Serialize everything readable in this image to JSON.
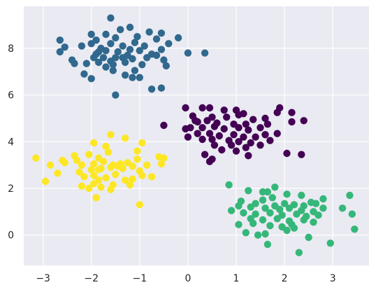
{
  "chart_data": {
    "type": "scatter",
    "title": "",
    "xlabel": "",
    "ylabel": "",
    "xlim": [
      -3.4,
      3.75
    ],
    "ylim": [
      -1.3,
      9.8
    ],
    "x_ticks": [
      -3,
      -2,
      -1,
      0,
      1,
      2,
      3
    ],
    "y_ticks": [
      0,
      2,
      4,
      6,
      8
    ],
    "grid": true,
    "background": "#EAEAF2",
    "grid_color": "#FFFFFF",
    "marker": "filled circle",
    "series": [
      {
        "color": "#31688E",
        "points": [
          [
            -1.6,
            9.3
          ],
          [
            -1.2,
            8.9
          ],
          [
            -0.8,
            8.7
          ],
          [
            -2.0,
            8.6
          ],
          [
            -1.7,
            8.6
          ],
          [
            -1.4,
            8.8
          ],
          [
            -0.55,
            8.65
          ],
          [
            -0.2,
            8.45
          ],
          [
            -2.65,
            8.35
          ],
          [
            -1.9,
            8.35
          ],
          [
            -1.5,
            8.45
          ],
          [
            -1.05,
            8.5
          ],
          [
            -0.65,
            8.4
          ],
          [
            -2.2,
            8.1
          ],
          [
            -2.0,
            8.2
          ],
          [
            -1.8,
            8.0
          ],
          [
            -1.6,
            8.2
          ],
          [
            -1.35,
            8.1
          ],
          [
            -1.1,
            8.25
          ],
          [
            -0.9,
            8.1
          ],
          [
            -0.4,
            8.2
          ],
          [
            -2.55,
            8.05
          ],
          [
            -2.65,
            7.85
          ],
          [
            -1.9,
            7.75
          ],
          [
            -1.7,
            7.9
          ],
          [
            -1.5,
            7.6
          ],
          [
            -1.25,
            7.7
          ],
          [
            -1.0,
            7.9
          ],
          [
            -0.75,
            7.75
          ],
          [
            -0.55,
            7.95
          ],
          [
            0.0,
            7.8
          ],
          [
            0.35,
            7.8
          ],
          [
            -2.4,
            7.5
          ],
          [
            -2.35,
            7.35
          ],
          [
            -2.1,
            7.35
          ],
          [
            -1.95,
            7.6
          ],
          [
            -1.85,
            7.4
          ],
          [
            -1.7,
            7.2
          ],
          [
            -1.55,
            7.3
          ],
          [
            -1.3,
            7.4
          ],
          [
            -1.15,
            7.55
          ],
          [
            -0.95,
            7.3
          ],
          [
            -0.65,
            7.7
          ],
          [
            -0.5,
            7.5
          ],
          [
            -0.45,
            7.25
          ],
          [
            -1.75,
            7.6
          ],
          [
            -1.6,
            7.45
          ],
          [
            -1.45,
            7.85
          ],
          [
            -1.2,
            7.95
          ],
          [
            -0.85,
            7.6
          ],
          [
            -2.15,
            6.9
          ],
          [
            -2.0,
            6.7
          ],
          [
            -1.3,
            6.85
          ],
          [
            -1.15,
            6.75
          ],
          [
            -1.0,
            6.75
          ],
          [
            -1.55,
            7.05
          ],
          [
            -1.1,
            7.05
          ],
          [
            -0.75,
            6.25
          ],
          [
            -0.55,
            6.3
          ],
          [
            -1.5,
            6.0
          ],
          [
            -1.85,
            7.85
          ],
          [
            -1.35,
            7.6
          ]
        ]
      },
      {
        "color": "#440154",
        "points": [
          [
            -0.05,
            5.45
          ],
          [
            0.3,
            5.45
          ],
          [
            0.45,
            5.45
          ],
          [
            0.75,
            5.35
          ],
          [
            1.0,
            5.35
          ],
          [
            1.15,
            5.2
          ],
          [
            1.6,
            5.0
          ],
          [
            1.9,
            5.45
          ],
          [
            2.15,
            5.25
          ],
          [
            0.1,
            5.1
          ],
          [
            0.5,
            5.05
          ],
          [
            0.8,
            5.05
          ],
          [
            1.05,
            5.15
          ],
          [
            1.35,
            4.95
          ],
          [
            1.85,
            5.25
          ],
          [
            2.4,
            4.9
          ],
          [
            0.2,
            4.85
          ],
          [
            0.4,
            4.9
          ],
          [
            0.6,
            4.8
          ],
          [
            0.95,
            4.75
          ],
          [
            1.2,
            4.75
          ],
          [
            1.5,
            4.6
          ],
          [
            2.15,
            4.85
          ],
          [
            -0.5,
            4.7
          ],
          [
            -0.05,
            4.55
          ],
          [
            0.05,
            4.6
          ],
          [
            0.3,
            4.6
          ],
          [
            0.55,
            4.65
          ],
          [
            0.75,
            4.55
          ],
          [
            1.05,
            4.6
          ],
          [
            1.25,
            4.5
          ],
          [
            0.2,
            4.35
          ],
          [
            0.45,
            4.35
          ],
          [
            0.65,
            4.25
          ],
          [
            0.95,
            4.3
          ],
          [
            1.15,
            4.2
          ],
          [
            1.4,
            4.2
          ],
          [
            1.6,
            4.3
          ],
          [
            1.85,
            4.35
          ],
          [
            0.0,
            4.2
          ],
          [
            0.3,
            4.1
          ],
          [
            0.5,
            4.1
          ],
          [
            0.85,
            4.05
          ],
          [
            1.05,
            4.0
          ],
          [
            1.3,
            3.95
          ],
          [
            1.7,
            4.05
          ],
          [
            0.55,
            3.85
          ],
          [
            0.9,
            3.85
          ],
          [
            1.2,
            3.75
          ],
          [
            1.5,
            3.85
          ],
          [
            0.7,
            3.65
          ],
          [
            1.0,
            3.6
          ],
          [
            0.35,
            3.45
          ],
          [
            1.25,
            3.4
          ],
          [
            2.05,
            3.5
          ],
          [
            2.35,
            3.45
          ],
          [
            0.45,
            3.15
          ],
          [
            0.5,
            3.25
          ],
          [
            0.15,
            4.9
          ],
          [
            1.65,
            4.75
          ]
        ]
      },
      {
        "color": "#FDE725",
        "points": [
          [
            -1.6,
            4.3
          ],
          [
            -1.3,
            4.15
          ],
          [
            -1.95,
            3.95
          ],
          [
            -1.7,
            3.8
          ],
          [
            -0.95,
            3.95
          ],
          [
            -3.15,
            3.3
          ],
          [
            -2.6,
            3.2
          ],
          [
            -2.35,
            3.4
          ],
          [
            -2.05,
            3.45
          ],
          [
            -1.85,
            3.3
          ],
          [
            -1.65,
            3.55
          ],
          [
            -1.05,
            3.6
          ],
          [
            -0.6,
            3.35
          ],
          [
            -0.5,
            3.3
          ],
          [
            -2.85,
            3.0
          ],
          [
            -2.55,
            3.1
          ],
          [
            -2.2,
            3.0
          ],
          [
            -1.95,
            3.05
          ],
          [
            -1.75,
            3.15
          ],
          [
            -1.55,
            3.0
          ],
          [
            -1.4,
            3.05
          ],
          [
            -1.25,
            3.1
          ],
          [
            -1.05,
            3.25
          ],
          [
            -0.85,
            3.0
          ],
          [
            -0.55,
            3.05
          ],
          [
            -2.25,
            2.7
          ],
          [
            -2.0,
            2.8
          ],
          [
            -1.8,
            2.85
          ],
          [
            -1.6,
            2.9
          ],
          [
            -1.35,
            2.85
          ],
          [
            -1.15,
            2.95
          ],
          [
            -1.0,
            2.75
          ],
          [
            -0.75,
            2.5
          ],
          [
            -2.7,
            2.65
          ],
          [
            -2.15,
            2.5
          ],
          [
            -1.95,
            2.55
          ],
          [
            -1.85,
            2.35
          ],
          [
            -1.7,
            2.45
          ],
          [
            -1.5,
            2.6
          ],
          [
            -1.3,
            2.35
          ],
          [
            -1.15,
            2.4
          ],
          [
            -0.95,
            2.55
          ],
          [
            -2.95,
            2.3
          ],
          [
            -2.2,
            2.1
          ],
          [
            -1.95,
            2.2
          ],
          [
            -1.8,
            2.05
          ],
          [
            -1.55,
            2.15
          ],
          [
            -1.2,
            2.15
          ],
          [
            -2.05,
            2.0
          ],
          [
            -1.6,
            1.95
          ],
          [
            -1.9,
            1.6
          ],
          [
            -1.0,
            1.3
          ],
          [
            -1.85,
            2.8
          ],
          [
            -2.3,
            3.2
          ],
          [
            -1.45,
            2.95
          ]
        ]
      },
      {
        "color": "#35B779",
        "points": [
          [
            0.85,
            2.15
          ],
          [
            1.25,
            1.9
          ],
          [
            1.55,
            1.85
          ],
          [
            1.65,
            1.85
          ],
          [
            1.8,
            2.05
          ],
          [
            2.05,
            1.75
          ],
          [
            2.35,
            1.7
          ],
          [
            2.55,
            1.4
          ],
          [
            2.8,
            1.55
          ],
          [
            3.35,
            1.7
          ],
          [
            1.1,
            1.45
          ],
          [
            1.4,
            1.35
          ],
          [
            1.55,
            1.5
          ],
          [
            1.75,
            1.6
          ],
          [
            2.0,
            1.35
          ],
          [
            2.2,
            1.3
          ],
          [
            2.4,
            1.25
          ],
          [
            2.65,
            1.35
          ],
          [
            1.05,
            1.25
          ],
          [
            1.3,
            1.2
          ],
          [
            1.6,
            1.15
          ],
          [
            1.9,
            1.1
          ],
          [
            2.1,
            1.15
          ],
          [
            2.35,
            1.05
          ],
          [
            2.6,
            1.0
          ],
          [
            2.8,
            1.15
          ],
          [
            0.9,
            1.05
          ],
          [
            1.15,
            0.95
          ],
          [
            1.4,
            0.9
          ],
          [
            1.7,
            0.95
          ],
          [
            1.95,
            0.85
          ],
          [
            2.25,
            0.9
          ],
          [
            2.45,
            0.8
          ],
          [
            2.7,
            0.85
          ],
          [
            1.3,
            0.7
          ],
          [
            1.55,
            0.65
          ],
          [
            1.85,
            0.7
          ],
          [
            2.1,
            0.6
          ],
          [
            2.4,
            0.65
          ],
          [
            2.6,
            0.55
          ],
          [
            1.05,
            0.45
          ],
          [
            1.35,
            0.5
          ],
          [
            1.7,
            0.4
          ],
          [
            1.95,
            0.35
          ],
          [
            2.2,
            0.3
          ],
          [
            1.2,
            0.1
          ],
          [
            1.45,
            0.0
          ],
          [
            1.6,
            0.05
          ],
          [
            2.05,
            0.2
          ],
          [
            2.5,
            -0.1
          ],
          [
            1.65,
            -0.4
          ],
          [
            2.3,
            -0.75
          ],
          [
            2.95,
            -0.35
          ],
          [
            3.2,
            1.15
          ],
          [
            3.4,
            0.9
          ],
          [
            3.45,
            0.25
          ],
          [
            1.8,
            1.25
          ],
          [
            2.15,
            0.45
          ]
        ]
      }
    ]
  }
}
